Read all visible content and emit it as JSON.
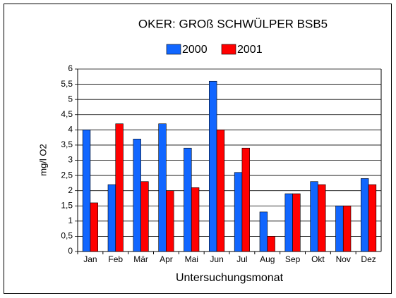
{
  "chart_data": {
    "type": "bar",
    "title": "OKER: GROß SCHWÜLPER BSB5",
    "categories": [
      "Jan",
      "Feb",
      "Mär",
      "Apr",
      "Mai",
      "Jun",
      "Jul",
      "Aug",
      "Sep",
      "Okt",
      "Nov",
      "Dez"
    ],
    "series": [
      {
        "name": "2000",
        "color": "#1166ff",
        "values": [
          4.0,
          2.2,
          3.7,
          4.2,
          3.4,
          5.6,
          2.6,
          1.3,
          1.9,
          2.3,
          1.5,
          2.4
        ]
      },
      {
        "name": "2001",
        "color": "#ff0000",
        "values": [
          1.6,
          4.2,
          2.3,
          2.0,
          2.1,
          4.0,
          3.4,
          0.5,
          1.9,
          2.2,
          1.5,
          2.2
        ]
      }
    ],
    "ylabel": "mg/l O2",
    "xlabel": "Untersuchungsmonat",
    "ylim": [
      0,
      6
    ],
    "yticks": [
      0,
      {
        "value": 0.5,
        "label": "0,5"
      },
      1,
      {
        "value": 1.5,
        "label": "1,5"
      },
      2,
      {
        "value": 2.5,
        "label": "2,5"
      },
      3,
      {
        "value": 3.5,
        "label": "3,5"
      },
      4,
      {
        "value": 4.5,
        "label": "4,5"
      },
      5,
      {
        "value": 5.5,
        "label": "5,5"
      },
      6
    ],
    "grid": true,
    "legend": "top"
  }
}
